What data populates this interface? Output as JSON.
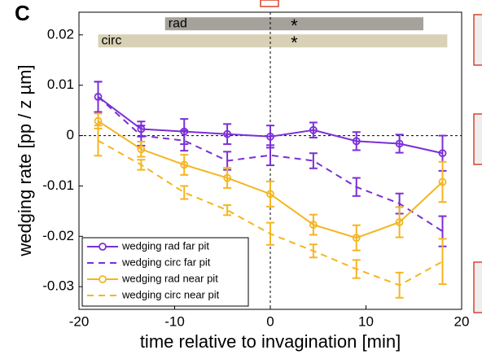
{
  "chart_data": {
    "type": "line",
    "panel_label": "C",
    "xlabel": "time relative to invagination [min]",
    "ylabel": "wedging rate [pp / z µm]",
    "xlim": [
      -20,
      20
    ],
    "ylim": [
      -0.0345,
      0.0245
    ],
    "xticks": [
      -20,
      -10,
      0,
      10,
      20
    ],
    "yticks": [
      0.02,
      0.01,
      0,
      -0.01,
      -0.02,
      -0.03
    ],
    "x": [
      -18,
      -13.5,
      -9,
      -4.5,
      0,
      4.5,
      9,
      13.5,
      18
    ],
    "series": [
      {
        "name": "wedging rad far pit",
        "color": "#7b2fd6",
        "dashed": false,
        "markers": true,
        "values": [
          0.0077,
          0.0013,
          0.0008,
          0.0003,
          -0.0002,
          0.0011,
          -0.0011,
          -0.0016,
          -0.0035
        ],
        "errors": [
          0.003,
          0.0015,
          0.0025,
          0.002,
          0.0022,
          0.0015,
          0.0018,
          0.0018,
          0.0035
        ]
      },
      {
        "name": "wedging circ far pit",
        "color": "#7b2fd6",
        "dashed": true,
        "markers": false,
        "values": [
          0.0077,
          0.0,
          -0.001,
          -0.005,
          -0.0039,
          -0.005,
          -0.0102,
          -0.0135,
          -0.019
        ],
        "errors": [
          0.003,
          0.002,
          0.002,
          0.0018,
          0.002,
          0.0015,
          0.0018,
          0.002,
          0.003
        ]
      },
      {
        "name": "wedging rad near pit",
        "color": "#f5b521",
        "dashed": false,
        "markers": true,
        "values": [
          0.0029,
          -0.0027,
          -0.0058,
          -0.0084,
          -0.0116,
          -0.0177,
          -0.0203,
          -0.0172,
          -0.0092
        ],
        "errors": [
          0.0015,
          0.0015,
          0.002,
          0.002,
          0.0025,
          0.002,
          0.0025,
          0.003,
          0.004
        ]
      },
      {
        "name": "wedging circ near pit",
        "color": "#f5b521",
        "dashed": true,
        "markers": false,
        "values": [
          -0.001,
          -0.0058,
          -0.0113,
          -0.0148,
          -0.0195,
          -0.0229,
          -0.0265,
          -0.0297,
          -0.025
        ],
        "errors": [
          0.003,
          0.001,
          0.0013,
          0.001,
          0.0022,
          0.0013,
          0.0018,
          0.0025,
          0.0045
        ]
      }
    ],
    "significance_bars": [
      {
        "label": "rad",
        "x": [
          -11,
          16
        ],
        "y": 0.0222,
        "color": "#a5a19b",
        "mark": "*",
        "mark_x": 2.5
      },
      {
        "label": "circ",
        "x": [
          -18,
          18.5
        ],
        "y": 0.0188,
        "color": "#d9d1b5",
        "mark": "*",
        "mark_x": 2.5
      }
    ],
    "reference_lines": {
      "x": 0,
      "y": 0
    }
  }
}
